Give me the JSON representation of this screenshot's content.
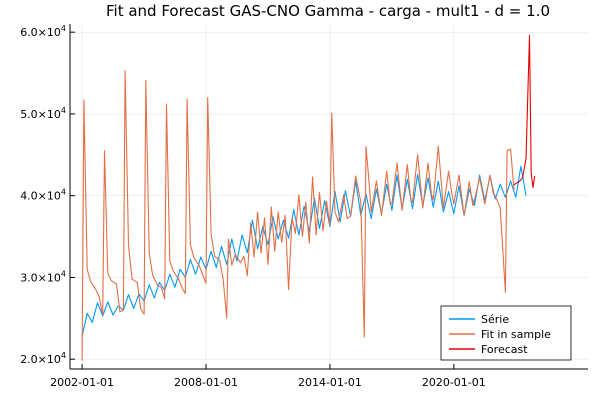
{
  "chart_data": {
    "type": "line",
    "title": "Fit and Forecast GAS-CNO Gamma - carga - mult1 - d = 1.0",
    "xlabel": "",
    "ylabel": "",
    "x_range": [
      "2001-06-01",
      "2026-07-01"
    ],
    "ylim": [
      18800,
      61000
    ],
    "x_ticks": [
      {
        "value": "2002-01-01",
        "label": "2002-01-01"
      },
      {
        "value": "2008-01-01",
        "label": "2008-01-01"
      },
      {
        "value": "2014-01-01",
        "label": "2014-01-01"
      },
      {
        "value": "2020-01-01",
        "label": "2020-01-01"
      }
    ],
    "y_ticks": [
      {
        "value": 20000,
        "mantissa": "2.0×10",
        "exp": "4"
      },
      {
        "value": 30000,
        "mantissa": "3.0×10",
        "exp": "4"
      },
      {
        "value": 40000,
        "mantissa": "4.0×10",
        "exp": "4"
      },
      {
        "value": 50000,
        "mantissa": "5.0×10",
        "exp": "4"
      },
      {
        "value": 60000,
        "mantissa": "6.0×10",
        "exp": "4"
      }
    ],
    "grid": true,
    "legend_position": "bottom-right",
    "series": [
      {
        "name": "Série",
        "color": "#009AFA",
        "points": [
          [
            "2002-01-01",
            22800
          ],
          [
            "2002-04-01",
            25600
          ],
          [
            "2002-07-01",
            24500
          ],
          [
            "2002-10-01",
            26900
          ],
          [
            "2003-01-01",
            25300
          ],
          [
            "2003-04-01",
            27000
          ],
          [
            "2003-07-01",
            25400
          ],
          [
            "2003-10-01",
            26500
          ],
          [
            "2004-01-01",
            26000
          ],
          [
            "2004-04-01",
            27900
          ],
          [
            "2004-07-01",
            26200
          ],
          [
            "2004-10-01",
            28000
          ],
          [
            "2005-01-01",
            27100
          ],
          [
            "2005-04-01",
            29100
          ],
          [
            "2005-07-01",
            27500
          ],
          [
            "2005-10-01",
            29400
          ],
          [
            "2006-01-01",
            28400
          ],
          [
            "2006-04-01",
            30400
          ],
          [
            "2006-07-01",
            28800
          ],
          [
            "2006-10-01",
            31000
          ],
          [
            "2007-01-01",
            30000
          ],
          [
            "2007-04-01",
            32200
          ],
          [
            "2007-07-01",
            30400
          ],
          [
            "2007-10-01",
            32500
          ],
          [
            "2008-01-01",
            31000
          ],
          [
            "2008-04-01",
            33200
          ],
          [
            "2008-07-01",
            31200
          ],
          [
            "2008-10-01",
            33800
          ],
          [
            "2009-01-01",
            31600
          ],
          [
            "2009-04-01",
            34700
          ],
          [
            "2009-07-01",
            32000
          ],
          [
            "2009-10-01",
            35200
          ],
          [
            "2010-01-01",
            33000
          ],
          [
            "2010-04-01",
            37000
          ],
          [
            "2010-07-01",
            33500
          ],
          [
            "2010-10-01",
            36200
          ],
          [
            "2011-01-01",
            34000
          ],
          [
            "2011-04-01",
            37400
          ],
          [
            "2011-07-01",
            34700
          ],
          [
            "2011-10-01",
            37000
          ],
          [
            "2012-01-01",
            34800
          ],
          [
            "2012-04-01",
            38300
          ],
          [
            "2012-07-01",
            35200
          ],
          [
            "2012-10-01",
            38700
          ],
          [
            "2013-01-01",
            35600
          ],
          [
            "2013-04-01",
            39700
          ],
          [
            "2013-07-01",
            36000
          ],
          [
            "2013-10-01",
            39400
          ],
          [
            "2014-01-01",
            36200
          ],
          [
            "2014-04-01",
            40500
          ],
          [
            "2014-07-01",
            36800
          ],
          [
            "2014-10-01",
            40600
          ],
          [
            "2015-01-01",
            37500
          ],
          [
            "2015-04-01",
            41800
          ],
          [
            "2015-07-01",
            37600
          ],
          [
            "2015-10-01",
            40200
          ],
          [
            "2016-01-01",
            37200
          ],
          [
            "2016-04-01",
            40800
          ],
          [
            "2016-07-01",
            37800
          ],
          [
            "2016-10-01",
            41400
          ],
          [
            "2017-01-01",
            38200
          ],
          [
            "2017-04-01",
            42500
          ],
          [
            "2017-07-01",
            38400
          ],
          [
            "2017-10-01",
            42000
          ],
          [
            "2018-01-01",
            38400
          ],
          [
            "2018-04-01",
            42600
          ],
          [
            "2018-07-01",
            38800
          ],
          [
            "2018-10-01",
            42200
          ],
          [
            "2019-01-01",
            38600
          ],
          [
            "2019-04-01",
            41800
          ],
          [
            "2019-07-01",
            38000
          ],
          [
            "2019-10-01",
            40500
          ],
          [
            "2020-01-01",
            37800
          ],
          [
            "2020-04-01",
            41200
          ],
          [
            "2020-07-01",
            37600
          ],
          [
            "2020-10-01",
            40800
          ],
          [
            "2021-01-01",
            38800
          ],
          [
            "2021-04-01",
            42500
          ],
          [
            "2021-07-01",
            39400
          ],
          [
            "2021-10-01",
            42400
          ],
          [
            "2022-01-01",
            39600
          ],
          [
            "2022-04-01",
            41400
          ],
          [
            "2022-07-01",
            39800
          ],
          [
            "2022-10-01",
            41800
          ],
          [
            "2023-01-01",
            39800
          ],
          [
            "2023-04-01",
            43600
          ],
          [
            "2023-07-01",
            40000
          ]
        ]
      },
      {
        "name": "Fit in sample",
        "color": "#E26F46",
        "points": [
          [
            "2002-01-01",
            19800
          ],
          [
            "2002-02-01",
            51700
          ],
          [
            "2002-04-01",
            31000
          ],
          [
            "2002-06-01",
            29500
          ],
          [
            "2002-09-01",
            28500
          ],
          [
            "2002-11-01",
            27600
          ],
          [
            "2003-01-01",
            25400
          ],
          [
            "2003-02-01",
            45500
          ],
          [
            "2003-04-01",
            30500
          ],
          [
            "2003-06-01",
            29600
          ],
          [
            "2003-09-01",
            29200
          ],
          [
            "2003-11-01",
            25800
          ],
          [
            "2004-01-01",
            26000
          ],
          [
            "2004-02-01",
            55300
          ],
          [
            "2004-04-01",
            34000
          ],
          [
            "2004-06-01",
            29800
          ],
          [
            "2004-09-01",
            29400
          ],
          [
            "2004-11-01",
            26200
          ],
          [
            "2005-01-01",
            25500
          ],
          [
            "2005-02-01",
            54100
          ],
          [
            "2005-04-01",
            33000
          ],
          [
            "2005-06-01",
            30300
          ],
          [
            "2005-09-01",
            29000
          ],
          [
            "2005-11-01",
            28800
          ],
          [
            "2006-01-01",
            27400
          ],
          [
            "2006-02-01",
            51200
          ],
          [
            "2006-04-01",
            32000
          ],
          [
            "2006-06-01",
            30800
          ],
          [
            "2006-09-01",
            29800
          ],
          [
            "2006-11-01",
            28800
          ],
          [
            "2007-01-01",
            28000
          ],
          [
            "2007-02-01",
            51800
          ],
          [
            "2007-04-01",
            34000
          ],
          [
            "2007-06-01",
            32400
          ],
          [
            "2007-09-01",
            31500
          ],
          [
            "2007-11-01",
            30400
          ],
          [
            "2008-01-01",
            29300
          ],
          [
            "2008-02-01",
            52000
          ],
          [
            "2008-04-01",
            35300
          ],
          [
            "2008-06-01",
            32600
          ],
          [
            "2008-09-01",
            32100
          ],
          [
            "2008-11-01",
            29700
          ],
          [
            "2009-01-01",
            25000
          ],
          [
            "2009-02-01",
            34700
          ],
          [
            "2009-04-01",
            31500
          ],
          [
            "2009-06-01",
            32800
          ],
          [
            "2009-09-01",
            31800
          ],
          [
            "2009-11-01",
            32600
          ],
          [
            "2010-01-01",
            30200
          ],
          [
            "2010-03-01",
            36600
          ],
          [
            "2010-05-01",
            32500
          ],
          [
            "2010-07-01",
            38000
          ],
          [
            "2010-09-01",
            33000
          ],
          [
            "2010-11-01",
            37300
          ],
          [
            "2011-01-01",
            31600
          ],
          [
            "2011-03-01",
            38600
          ],
          [
            "2011-05-01",
            33200
          ],
          [
            "2011-07-01",
            38000
          ],
          [
            "2011-09-01",
            34300
          ],
          [
            "2011-11-01",
            37600
          ],
          [
            "2012-01-01",
            28500
          ],
          [
            "2012-03-01",
            37300
          ],
          [
            "2012-05-01",
            35400
          ],
          [
            "2012-07-01",
            40100
          ],
          [
            "2012-09-01",
            35000
          ],
          [
            "2012-11-01",
            39200
          ],
          [
            "2013-01-01",
            34200
          ],
          [
            "2013-03-01",
            42300
          ],
          [
            "2013-05-01",
            35200
          ],
          [
            "2013-07-01",
            40400
          ],
          [
            "2013-09-01",
            35700
          ],
          [
            "2013-11-01",
            39300
          ],
          [
            "2014-01-01",
            36400
          ],
          [
            "2014-02-01",
            50100
          ],
          [
            "2014-04-01",
            38000
          ],
          [
            "2014-06-01",
            36800
          ],
          [
            "2014-09-01",
            40100
          ],
          [
            "2014-11-01",
            37200
          ],
          [
            "2015-01-01",
            37500
          ],
          [
            "2015-04-01",
            42400
          ],
          [
            "2015-07-01",
            39200
          ],
          [
            "2015-09-01",
            22700
          ],
          [
            "2015-10-01",
            46000
          ],
          [
            "2015-12-01",
            41000
          ],
          [
            "2016-01-01",
            38000
          ],
          [
            "2016-04-01",
            41800
          ],
          [
            "2016-07-01",
            37600
          ],
          [
            "2016-10-01",
            43000
          ],
          [
            "2016-12-01",
            39000
          ],
          [
            "2017-01-01",
            39000
          ],
          [
            "2017-04-01",
            44000
          ],
          [
            "2017-07-01",
            38200
          ],
          [
            "2017-10-01",
            43800
          ],
          [
            "2017-12-01",
            39500
          ],
          [
            "2018-01-01",
            39200
          ],
          [
            "2018-04-01",
            45000
          ],
          [
            "2018-07-01",
            38500
          ],
          [
            "2018-10-01",
            44000
          ],
          [
            "2018-12-01",
            40200
          ],
          [
            "2019-01-01",
            39500
          ],
          [
            "2019-04-01",
            46000
          ],
          [
            "2019-07-01",
            38500
          ],
          [
            "2019-10-01",
            43000
          ],
          [
            "2019-12-01",
            40000
          ],
          [
            "2020-01-01",
            39000
          ],
          [
            "2020-04-01",
            42500
          ],
          [
            "2020-07-01",
            37600
          ],
          [
            "2020-10-01",
            41700
          ],
          [
            "2020-12-01",
            38800
          ],
          [
            "2021-01-01",
            39500
          ],
          [
            "2021-04-01",
            42200
          ],
          [
            "2021-07-01",
            39000
          ],
          [
            "2021-10-01",
            42500
          ],
          [
            "2021-12-01",
            40200
          ],
          [
            "2022-01-01",
            40000
          ],
          [
            "2022-04-01",
            38500
          ],
          [
            "2022-07-01",
            28200
          ],
          [
            "2022-08-01",
            45500
          ],
          [
            "2022-10-01",
            45700
          ],
          [
            "2022-12-01",
            40700
          ]
        ]
      },
      {
        "name": "Forecast",
        "color": "#E20000",
        "points": [
          [
            "2022-12-01",
            41300
          ],
          [
            "2023-01-01",
            41500
          ],
          [
            "2023-03-01",
            41700
          ],
          [
            "2023-05-01",
            42200
          ],
          [
            "2023-07-01",
            44500
          ],
          [
            "2023-09-01",
            59600
          ],
          [
            "2023-10-01",
            42800
          ],
          [
            "2023-11-01",
            41000
          ],
          [
            "2023-12-01",
            42400
          ]
        ]
      }
    ]
  }
}
